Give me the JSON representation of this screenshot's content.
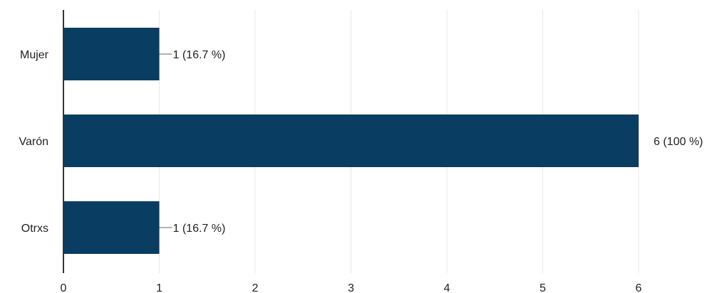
{
  "chart_data": {
    "type": "bar",
    "orientation": "horizontal",
    "categories": [
      "Mujer",
      "Varón",
      "Otrxs"
    ],
    "values": [
      1,
      6,
      1
    ],
    "data_labels": [
      "1 (16.7 %)",
      "6 (100 %)",
      "1 (16.7 %)"
    ],
    "xlim": [
      0,
      6
    ],
    "x_ticks": [
      "0",
      "1",
      "2",
      "3",
      "4",
      "5",
      "6"
    ],
    "grid": true,
    "legend": "none",
    "title": "",
    "xlabel": "",
    "ylabel": ""
  },
  "colors": {
    "bar": "#0a3d62",
    "grid": "#e8e8e8",
    "axis": "#333333",
    "leader": "#666666",
    "text": "#222222"
  }
}
